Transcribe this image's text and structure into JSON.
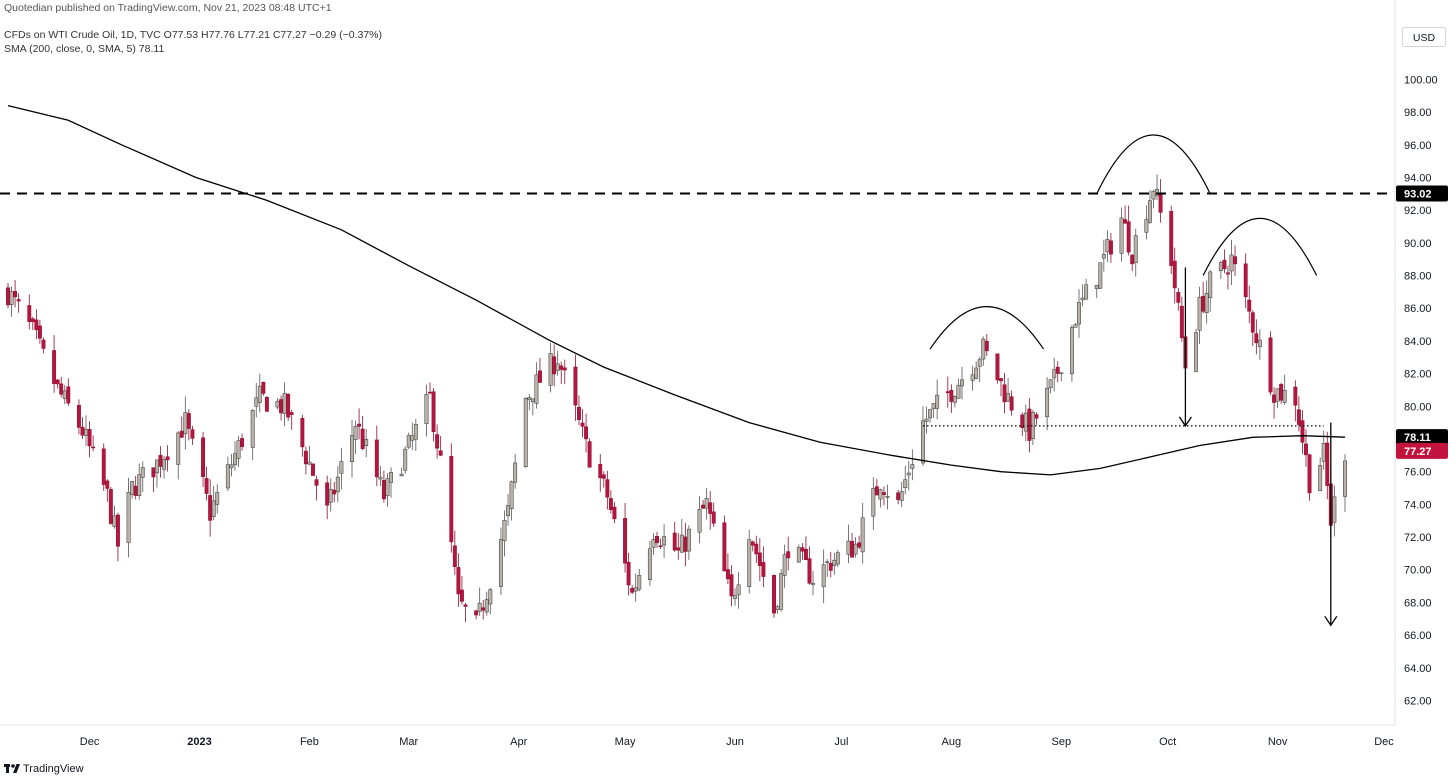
{
  "header": {
    "publisher": "Quotedian published on TradingView.com, Nov 21, 2023 08:48 UTC+1",
    "symbol_line": "CFDs on WTI Crude Oil, 1D, TVC  O77.53  H77.76  L77.21  C77.27  −0.29 (−0.37%)",
    "sma_line": "SMA (200, close, 0, SMA, 5)  78.11",
    "currency": "USD"
  },
  "footer": {
    "brand": "TradingView"
  },
  "colors": {
    "up": "#b9b2a8",
    "down": "#b5163f",
    "sma": "#000000",
    "price_badge": "#c2133e"
  },
  "chart_data": {
    "type": "candlestick",
    "title": "",
    "ylim": [
      60.5,
      101.8
    ],
    "yticks": [
      "100.00",
      "98.00",
      "96.00",
      "94.00",
      "92.00",
      "90.00",
      "88.00",
      "86.00",
      "84.00",
      "82.00",
      "80.00",
      "78.00",
      "76.00",
      "74.00",
      "72.00",
      "70.00",
      "68.00",
      "66.00",
      "64.00",
      "62.00"
    ],
    "xticks": [
      {
        "label": "Dec",
        "date": "2022-12-01"
      },
      {
        "label": "2023",
        "date": "2023-01-01"
      },
      {
        "label": "Feb",
        "date": "2023-02-01"
      },
      {
        "label": "Mar",
        "date": "2023-03-01"
      },
      {
        "label": "Apr",
        "date": "2023-04-01"
      },
      {
        "label": "May",
        "date": "2023-05-01"
      },
      {
        "label": "Jun",
        "date": "2023-06-01"
      },
      {
        "label": "Jul",
        "date": "2023-07-01"
      },
      {
        "label": "Aug",
        "date": "2023-08-01"
      },
      {
        "label": "Sep",
        "date": "2023-09-01"
      },
      {
        "label": "Oct",
        "date": "2023-10-01"
      },
      {
        "label": "Nov",
        "date": "2023-11-01"
      },
      {
        "label": "Dec",
        "date": "2023-12-01"
      }
    ],
    "close_path": [
      [
        "2022-11-08",
        87.0
      ],
      [
        "2022-11-15",
        84.5
      ],
      [
        "2022-11-22",
        81.0
      ],
      [
        "2022-11-29",
        78.5
      ],
      [
        "2022-12-06",
        74.5
      ],
      [
        "2022-12-09",
        71.5
      ],
      [
        "2022-12-13",
        75.0
      ],
      [
        "2022-12-20",
        76.5
      ],
      [
        "2022-12-28",
        79.0
      ],
      [
        "2023-01-04",
        73.5
      ],
      [
        "2023-01-11",
        77.0
      ],
      [
        "2023-01-18",
        80.5
      ],
      [
        "2023-01-25",
        80.0
      ],
      [
        "2023-02-01",
        76.5
      ],
      [
        "2023-02-06",
        73.5
      ],
      [
        "2023-02-14",
        79.0
      ],
      [
        "2023-02-22",
        74.5
      ],
      [
        "2023-03-01",
        77.5
      ],
      [
        "2023-03-07",
        80.5
      ],
      [
        "2023-03-10",
        76.5
      ],
      [
        "2023-03-15",
        68.0
      ],
      [
        "2023-03-20",
        66.5
      ],
      [
        "2023-03-24",
        69.5
      ],
      [
        "2023-03-29",
        73.5
      ],
      [
        "2023-04-03",
        80.5
      ],
      [
        "2023-04-12",
        83.0
      ],
      [
        "2023-04-20",
        77.5
      ],
      [
        "2023-04-26",
        74.5
      ],
      [
        "2023-05-03",
        68.5
      ],
      [
        "2023-05-09",
        72.5
      ],
      [
        "2023-05-16",
        71.0
      ],
      [
        "2023-05-24",
        74.0
      ],
      [
        "2023-05-31",
        68.0
      ],
      [
        "2023-06-05",
        72.5
      ],
      [
        "2023-06-12",
        67.5
      ],
      [
        "2023-06-16",
        71.5
      ],
      [
        "2023-06-23",
        69.5
      ],
      [
        "2023-06-28",
        70.5
      ],
      [
        "2023-07-05",
        71.5
      ],
      [
        "2023-07-12",
        75.5
      ],
      [
        "2023-07-17",
        74.0
      ],
      [
        "2023-07-24",
        79.0
      ],
      [
        "2023-08-03",
        81.5
      ],
      [
        "2023-08-10",
        83.5
      ],
      [
        "2023-08-17",
        80.5
      ],
      [
        "2023-08-23",
        78.5
      ],
      [
        "2023-08-30",
        81.5
      ],
      [
        "2023-09-05",
        85.5
      ],
      [
        "2023-09-12",
        88.5
      ],
      [
        "2023-09-18",
        91.5
      ],
      [
        "2023-09-21",
        89.5
      ],
      [
        "2023-09-27",
        93.5
      ],
      [
        "2023-10-02",
        89.0
      ],
      [
        "2023-10-06",
        82.5
      ],
      [
        "2023-10-10",
        86.0
      ],
      [
        "2023-10-13",
        87.5
      ],
      [
        "2023-10-19",
        89.0
      ],
      [
        "2023-10-25",
        85.0
      ],
      [
        "2023-10-31",
        81.0
      ],
      [
        "2023-11-06",
        80.5
      ],
      [
        "2023-11-10",
        75.5
      ],
      [
        "2023-11-14",
        77.0
      ],
      [
        "2023-11-16",
        73.0
      ],
      [
        "2023-11-20",
        77.3
      ]
    ],
    "sma_200": {
      "name": "SMA (200, close, 0, SMA, 5)",
      "points": [
        [
          "2022-11-08",
          98.4
        ],
        [
          "2022-11-25",
          97.5
        ],
        [
          "2022-12-10",
          96.0
        ],
        [
          "2022-12-31",
          94.0
        ],
        [
          "2023-01-20",
          92.6
        ],
        [
          "2023-02-10",
          90.8
        ],
        [
          "2023-03-01",
          88.6
        ],
        [
          "2023-03-20",
          86.5
        ],
        [
          "2023-04-10",
          84.0
        ],
        [
          "2023-04-25",
          82.4
        ],
        [
          "2023-05-15",
          80.7
        ],
        [
          "2023-06-05",
          79.0
        ],
        [
          "2023-06-25",
          77.8
        ],
        [
          "2023-07-15",
          77.0
        ],
        [
          "2023-08-01",
          76.4
        ],
        [
          "2023-08-15",
          76.0
        ],
        [
          "2023-08-29",
          75.8
        ],
        [
          "2023-09-12",
          76.2
        ],
        [
          "2023-09-26",
          76.9
        ],
        [
          "2023-10-10",
          77.6
        ],
        [
          "2023-10-25",
          78.1
        ],
        [
          "2023-11-08",
          78.2
        ],
        [
          "2023-11-20",
          78.11
        ]
      ]
    },
    "last_close": {
      "value": "77.27",
      "y": 77.27
    },
    "sma_value": {
      "value": "78.11",
      "y": 78.11
    },
    "resistance": {
      "value": "93.02",
      "y": 93.02
    },
    "neckline": {
      "y": 78.8,
      "from": "2023-07-24",
      "to": "2023-11-14"
    },
    "annotations": {
      "left_shoulder": {
        "from": "2023-07-26",
        "to": "2023-08-27",
        "peak": 86.1,
        "base": 83.5
      },
      "head": {
        "from": "2023-09-11",
        "to": "2023-10-13",
        "peak": 96.6,
        "base": 93.0
      },
      "right_shoulder": {
        "from": "2023-10-11",
        "to": "2023-11-12",
        "peak": 91.5,
        "base": 88.0
      },
      "head_projection": {
        "date": "2023-10-06",
        "from": 88.5,
        "to": 78.8
      },
      "target_projection": {
        "date": "2023-11-16",
        "from": 79.0,
        "to": 66.6
      }
    }
  }
}
